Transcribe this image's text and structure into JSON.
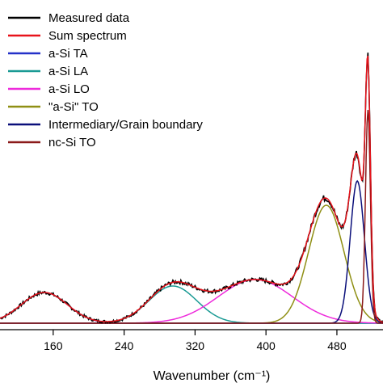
{
  "chart_data": {
    "type": "line",
    "xlabel": "Wavenumber (cm⁻¹)",
    "ylabel": "",
    "xlim": [
      100,
      532
    ],
    "ylim": [
      0,
      100
    ],
    "xticks": [
      160,
      240,
      320,
      400,
      480
    ],
    "grid": false,
    "legend": "top-left",
    "series": [
      {
        "name": "Measured data",
        "color": "#000000",
        "model": "measured"
      },
      {
        "name": "Sum spectrum",
        "color": "#e8131b",
        "model": "sum"
      },
      {
        "name": "a-Si TA",
        "color": "#2431c8",
        "model": "gauss",
        "center": 150,
        "amp": 9.5,
        "sigma": 26
      },
      {
        "name": "a-Si  LA",
        "color": "#1a9a94",
        "model": "gauss",
        "center": 295,
        "amp": 11.5,
        "sigma": 27
      },
      {
        "name": "a-Si LO",
        "color": "#ee2bdb",
        "model": "gauss",
        "center": 388,
        "amp": 13.5,
        "sigma": 42
      },
      {
        "name": "\"a-Si\" TO",
        "color": "#8f8f14",
        "model": "gauss",
        "center": 468,
        "amp": 36.5,
        "sigma": 20
      },
      {
        "name": "Intermediary/Grain boundary",
        "color": "#0a0f7a",
        "model": "gauss",
        "center": 503,
        "amp": 44,
        "sigma": 8
      },
      {
        "name": "nc-Si TO",
        "color": "#8b1a1a",
        "model": "gauss",
        "center": 515,
        "amp": 66,
        "sigma": 2.8
      }
    ]
  }
}
